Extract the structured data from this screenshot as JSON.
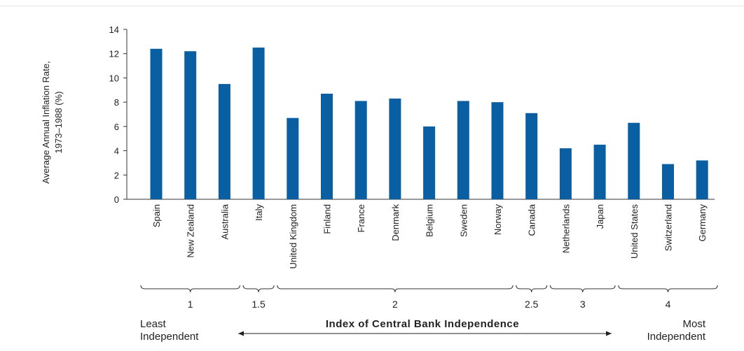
{
  "chart_data": {
    "type": "bar",
    "ylabel_lines": [
      "Average Annual Inflation Rate,",
      "1973–1988 (%)"
    ],
    "ylim": [
      0,
      14
    ],
    "yticks": [
      "0",
      "2",
      "4",
      "6",
      "8",
      "10",
      "12",
      "14"
    ],
    "categories": [
      "Spain",
      "New Zealand",
      "Australia",
      "Italy",
      "United Kingdom",
      "Finland",
      "France",
      "Denmark",
      "Belgium",
      "Sweden",
      "Norway",
      "Canada",
      "Netherlands",
      "Japan",
      "United States",
      "Switzerland",
      "Germany"
    ],
    "values": [
      12.4,
      12.2,
      9.5,
      12.5,
      6.7,
      8.7,
      8.1,
      8.3,
      6.0,
      8.1,
      8.0,
      7.1,
      4.2,
      4.5,
      6.3,
      2.9,
      3.2
    ],
    "bar_color": "#0a5fa3",
    "groups": [
      {
        "label": "1",
        "from": 0,
        "to": 2
      },
      {
        "label": "1.5",
        "from": 3,
        "to": 3
      },
      {
        "label": "2",
        "from": 4,
        "to": 10
      },
      {
        "label": "2.5",
        "from": 11,
        "to": 11
      },
      {
        "label": "3",
        "from": 12,
        "to": 13
      },
      {
        "label": "4",
        "from": 14,
        "to": 16
      }
    ],
    "footer": {
      "left_line1": "Least",
      "left_line2": "Independent",
      "center": "Index of Central Bank Independence",
      "right_line1": "Most",
      "right_line2": "Independent"
    }
  }
}
